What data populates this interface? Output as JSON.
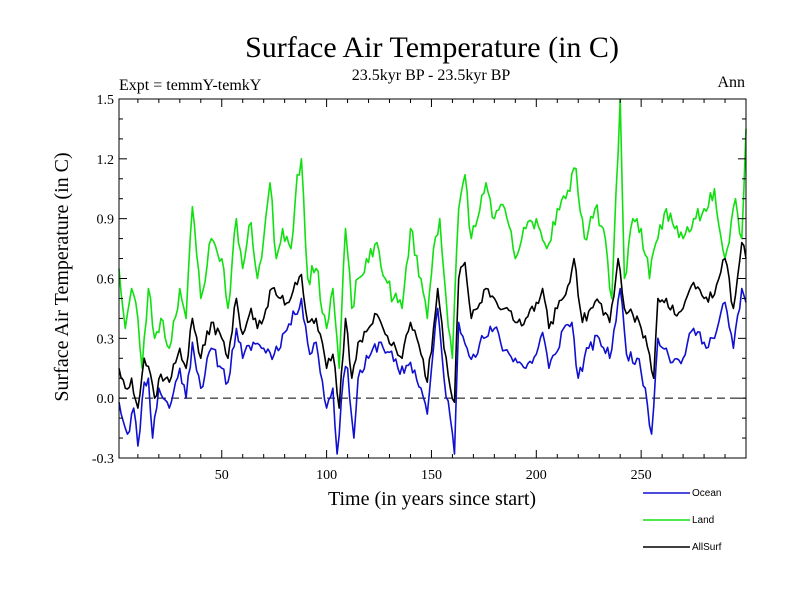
{
  "chart_data": {
    "type": "line",
    "title": "Surface Air Temperature (in C)",
    "subtitle": "23.5kyr BP - 23.5kyr BP",
    "left_label": "Expt = temmY-temkY",
    "right_label": "Ann",
    "xlabel": "Time (in years since start)",
    "ylabel": "Surface Air Temperature (in C)",
    "xlim": [
      1,
      300
    ],
    "ylim": [
      -0.3,
      1.5
    ],
    "xticks": [
      50,
      100,
      150,
      200,
      250
    ],
    "xtick_labels": [
      "50",
      "100",
      "150",
      "200",
      "250"
    ],
    "yticks": [
      -0.3,
      0.0,
      0.3,
      0.6,
      0.9,
      1.2,
      1.5
    ],
    "ytick_labels": [
      "-0.3",
      "0.0",
      "0.3",
      "0.6",
      "0.9",
      "1.2",
      "1.5"
    ],
    "reference_line": 0.0,
    "legend_position": "bottom-right, outside plot",
    "series": [
      {
        "name": "Ocean",
        "color": "#1010d0",
        "anchors": [
          [
            1,
            -0.02
          ],
          [
            5,
            -0.18
          ],
          [
            8,
            -0.05
          ],
          [
            10,
            -0.24
          ],
          [
            13,
            0.08
          ],
          [
            15,
            0.1
          ],
          [
            17,
            -0.2
          ],
          [
            20,
            0.05
          ],
          [
            25,
            -0.05
          ],
          [
            30,
            0.15
          ],
          [
            33,
            0.0
          ],
          [
            36,
            0.28
          ],
          [
            40,
            0.05
          ],
          [
            45,
            0.25
          ],
          [
            50,
            0.15
          ],
          [
            53,
            0.08
          ],
          [
            57,
            0.35
          ],
          [
            60,
            0.2
          ],
          [
            65,
            0.28
          ],
          [
            70,
            0.25
          ],
          [
            75,
            0.22
          ],
          [
            80,
            0.33
          ],
          [
            85,
            0.42
          ],
          [
            88,
            0.5
          ],
          [
            92,
            0.22
          ],
          [
            95,
            0.28
          ],
          [
            100,
            -0.05
          ],
          [
            103,
            0.05
          ],
          [
            105,
            -0.28
          ],
          [
            108,
            0.1
          ],
          [
            110,
            0.15
          ],
          [
            113,
            -0.2
          ],
          [
            115,
            0.1
          ],
          [
            120,
            0.2
          ],
          [
            125,
            0.28
          ],
          [
            130,
            0.23
          ],
          [
            135,
            0.12
          ],
          [
            140,
            0.18
          ],
          [
            145,
            0.05
          ],
          [
            148,
            -0.08
          ],
          [
            151,
            0.25
          ],
          [
            153,
            0.45
          ],
          [
            156,
            0.1
          ],
          [
            159,
            -0.1
          ],
          [
            161,
            -0.28
          ],
          [
            163,
            0.38
          ],
          [
            167,
            0.25
          ],
          [
            170,
            0.22
          ],
          [
            175,
            0.3
          ],
          [
            180,
            0.35
          ],
          [
            185,
            0.24
          ],
          [
            190,
            0.2
          ],
          [
            195,
            0.15
          ],
          [
            200,
            0.22
          ],
          [
            203,
            0.33
          ],
          [
            206,
            0.15
          ],
          [
            209,
            0.22
          ],
          [
            213,
            0.35
          ],
          [
            217,
            0.38
          ],
          [
            220,
            0.1
          ],
          [
            225,
            0.25
          ],
          [
            230,
            0.3
          ],
          [
            235,
            0.2
          ],
          [
            240,
            0.55
          ],
          [
            243,
            0.22
          ],
          [
            248,
            0.2
          ],
          [
            252,
            0.05
          ],
          [
            255,
            -0.18
          ],
          [
            258,
            0.3
          ],
          [
            262,
            0.25
          ],
          [
            265,
            0.18
          ],
          [
            270,
            0.2
          ],
          [
            275,
            0.35
          ],
          [
            280,
            0.28
          ],
          [
            285,
            0.3
          ],
          [
            290,
            0.48
          ],
          [
            294,
            0.25
          ],
          [
            298,
            0.55
          ],
          [
            300,
            0.48
          ]
        ]
      },
      {
        "name": "Land",
        "color": "#10e010",
        "anchors": [
          [
            1,
            0.65
          ],
          [
            4,
            0.35
          ],
          [
            7,
            0.55
          ],
          [
            10,
            0.4
          ],
          [
            12,
            0.15
          ],
          [
            15,
            0.55
          ],
          [
            18,
            0.3
          ],
          [
            21,
            0.4
          ],
          [
            25,
            0.25
          ],
          [
            30,
            0.55
          ],
          [
            33,
            0.4
          ],
          [
            36,
            0.96
          ],
          [
            40,
            0.5
          ],
          [
            45,
            0.8
          ],
          [
            50,
            0.7
          ],
          [
            53,
            0.45
          ],
          [
            57,
            0.9
          ],
          [
            60,
            0.65
          ],
          [
            64,
            0.88
          ],
          [
            67,
            0.6
          ],
          [
            70,
            0.8
          ],
          [
            73,
            1.08
          ],
          [
            76,
            0.7
          ],
          [
            79,
            0.85
          ],
          [
            83,
            0.75
          ],
          [
            86,
            1.12
          ],
          [
            88,
            1.2
          ],
          [
            91,
            0.6
          ],
          [
            95,
            0.65
          ],
          [
            100,
            0.35
          ],
          [
            103,
            0.55
          ],
          [
            106,
            0.15
          ],
          [
            109,
            0.85
          ],
          [
            112,
            0.45
          ],
          [
            115,
            0.6
          ],
          [
            120,
            0.68
          ],
          [
            124,
            0.78
          ],
          [
            128,
            0.6
          ],
          [
            132,
            0.5
          ],
          [
            136,
            0.45
          ],
          [
            140,
            0.85
          ],
          [
            145,
            0.6
          ],
          [
            148,
            0.4
          ],
          [
            151,
            0.75
          ],
          [
            154,
            0.9
          ],
          [
            157,
            0.5
          ],
          [
            160,
            0.2
          ],
          [
            163,
            0.95
          ],
          [
            166,
            1.12
          ],
          [
            169,
            0.8
          ],
          [
            172,
            0.9
          ],
          [
            176,
            1.08
          ],
          [
            180,
            0.9
          ],
          [
            185,
            0.95
          ],
          [
            190,
            0.7
          ],
          [
            195,
            0.85
          ],
          [
            200,
            0.9
          ],
          [
            205,
            0.75
          ],
          [
            210,
            0.95
          ],
          [
            214,
            1.0
          ],
          [
            219,
            1.15
          ],
          [
            223,
            0.8
          ],
          [
            228,
            0.95
          ],
          [
            232,
            0.85
          ],
          [
            236,
            0.5
          ],
          [
            240,
            1.5
          ],
          [
            242,
            0.6
          ],
          [
            246,
            0.9
          ],
          [
            250,
            0.85
          ],
          [
            254,
            0.6
          ],
          [
            258,
            0.8
          ],
          [
            262,
            0.95
          ],
          [
            266,
            0.85
          ],
          [
            270,
            0.8
          ],
          [
            275,
            0.9
          ],
          [
            280,
            0.95
          ],
          [
            285,
            1.05
          ],
          [
            290,
            0.7
          ],
          [
            295,
            1.0
          ],
          [
            298,
            0.8
          ],
          [
            300,
            1.35
          ]
        ]
      },
      {
        "name": "AllSurf",
        "color": "#000000",
        "anchors": [
          [
            1,
            0.15
          ],
          [
            4,
            0.05
          ],
          [
            7,
            0.1
          ],
          [
            10,
            -0.05
          ],
          [
            13,
            0.2
          ],
          [
            16,
            0.12
          ],
          [
            18,
            0.0
          ],
          [
            21,
            0.12
          ],
          [
            25,
            0.08
          ],
          [
            30,
            0.25
          ],
          [
            33,
            0.15
          ],
          [
            36,
            0.4
          ],
          [
            40,
            0.2
          ],
          [
            45,
            0.38
          ],
          [
            50,
            0.3
          ],
          [
            53,
            0.2
          ],
          [
            57,
            0.5
          ],
          [
            60,
            0.32
          ],
          [
            64,
            0.45
          ],
          [
            67,
            0.35
          ],
          [
            70,
            0.4
          ],
          [
            74,
            0.55
          ],
          [
            78,
            0.5
          ],
          [
            82,
            0.48
          ],
          [
            85,
            0.58
          ],
          [
            88,
            0.62
          ],
          [
            91,
            0.38
          ],
          [
            95,
            0.4
          ],
          [
            100,
            0.15
          ],
          [
            103,
            0.22
          ],
          [
            106,
            -0.05
          ],
          [
            109,
            0.4
          ],
          [
            112,
            0.1
          ],
          [
            115,
            0.28
          ],
          [
            120,
            0.35
          ],
          [
            124,
            0.42
          ],
          [
            128,
            0.32
          ],
          [
            132,
            0.28
          ],
          [
            136,
            0.2
          ],
          [
            140,
            0.38
          ],
          [
            145,
            0.22
          ],
          [
            148,
            0.08
          ],
          [
            151,
            0.35
          ],
          [
            153,
            0.55
          ],
          [
            156,
            0.25
          ],
          [
            159,
            0.05
          ],
          [
            161,
            -0.02
          ],
          [
            163,
            0.6
          ],
          [
            166,
            0.68
          ],
          [
            169,
            0.4
          ],
          [
            172,
            0.45
          ],
          [
            176,
            0.55
          ],
          [
            180,
            0.5
          ],
          [
            185,
            0.45
          ],
          [
            190,
            0.38
          ],
          [
            195,
            0.4
          ],
          [
            200,
            0.48
          ],
          [
            203,
            0.55
          ],
          [
            206,
            0.35
          ],
          [
            210,
            0.45
          ],
          [
            214,
            0.52
          ],
          [
            218,
            0.7
          ],
          [
            222,
            0.38
          ],
          [
            226,
            0.45
          ],
          [
            230,
            0.48
          ],
          [
            235,
            0.38
          ],
          [
            239,
            0.7
          ],
          [
            242,
            0.45
          ],
          [
            246,
            0.42
          ],
          [
            250,
            0.35
          ],
          [
            254,
            0.22
          ],
          [
            256,
            0.1
          ],
          [
            258,
            0.5
          ],
          [
            262,
            0.5
          ],
          [
            266,
            0.42
          ],
          [
            270,
            0.45
          ],
          [
            275,
            0.58
          ],
          [
            280,
            0.5
          ],
          [
            285,
            0.52
          ],
          [
            290,
            0.7
          ],
          [
            294,
            0.45
          ],
          [
            298,
            0.78
          ],
          [
            300,
            0.7
          ]
        ]
      }
    ]
  }
}
